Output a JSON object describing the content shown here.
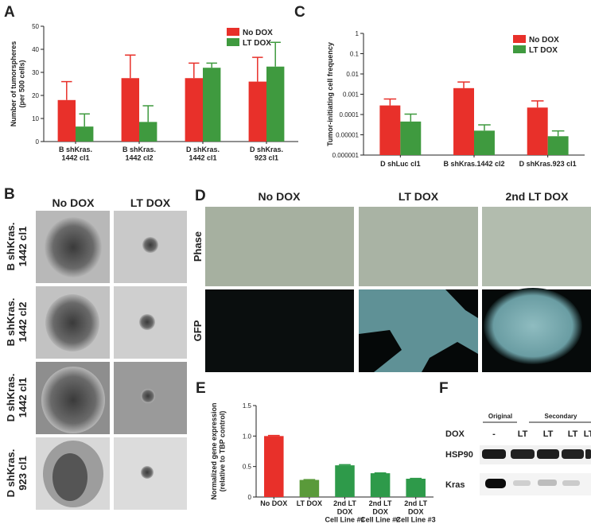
{
  "figure": {
    "panel_labels": [
      "A",
      "B",
      "C",
      "D",
      "E",
      "F"
    ]
  },
  "chart_data": [
    {
      "type": "bar",
      "y_label": "Number of tumorspheres\n(per 500 cells)",
      "categories": [
        "B shKras.\n1442 cl1",
        "B shKras.\n1442 cl2",
        "D shKras.\n1442 cl1",
        "D shKras.\n923 cl1"
      ],
      "series": [
        {
          "name": "No DOX",
          "color": "#e8302a",
          "values": [
            18,
            27.5,
            27.5,
            26
          ],
          "errors": [
            8,
            10,
            6.5,
            10.5
          ]
        },
        {
          "name": "LT DOX",
          "color": "#3f9a3f",
          "values": [
            6.5,
            8.5,
            32,
            32.5
          ],
          "errors": [
            5.5,
            7,
            2,
            10.5
          ]
        }
      ],
      "ylim": [
        0,
        50
      ],
      "yticks": [
        0,
        10,
        20,
        30,
        40,
        50
      ],
      "legend": "upper right"
    },
    {
      "type": "bar",
      "y_label": "Tumor-initiating cell frequency",
      "log_y": true,
      "categories": [
        "D shLuc cl1",
        "B shKras.1442 cl2",
        "D shKras.923 cl1"
      ],
      "series": [
        {
          "name": "No DOX",
          "color": "#e8302a",
          "values": [
            0.00028,
            0.002,
            0.00022
          ],
          "errors": [
            0.0003,
            0.002,
            0.00025
          ]
        },
        {
          "name": "LT DOX",
          "color": "#3f9a3f",
          "values": [
            4.5e-05,
            1.6e-05,
            8.5e-06
          ],
          "errors": [
            6e-05,
            1.5e-05,
            7e-06
          ]
        }
      ],
      "ylim": [
        1e-06,
        1
      ],
      "yticks": [
        1e-06,
        1e-05,
        0.0001,
        0.001,
        0.01,
        0.1,
        1
      ],
      "legend": "upper right"
    },
    {
      "type": "bar",
      "y_label": "Normalized gene expression\n(relative to TBP control)",
      "categories": [
        "No DOX",
        "LT DOX",
        "2nd LT\nDOX\nCell Line #1",
        "2nd LT\nDOX\nCell Line #2",
        "2nd LT\nDOX\nCell Line #3"
      ],
      "values": [
        1.0,
        0.28,
        0.52,
        0.39,
        0.3
      ],
      "errors": [
        0.01,
        0.005,
        0.01,
        0.005,
        0.005
      ],
      "colors": [
        "#e8302a",
        "#5a9a3a",
        "#2e9a4a",
        "#2e9a4a",
        "#2e9a4a"
      ],
      "ylim": [
        0,
        1.5
      ],
      "yticks": [
        0,
        0.5,
        {
          "value": 1,
          "label": "1.0"
        },
        1.5
      ]
    }
  ],
  "panel_b": {
    "columns": [
      "No DOX",
      "LT DOX"
    ],
    "rows": [
      "B shKras.\n1442 cl1",
      "B shKras.\n1442 cl2",
      "D shKras.\n1442 cl1",
      "D shKras.\n923 cl1"
    ]
  },
  "panel_d": {
    "columns": [
      "No DOX",
      "LT DOX",
      "2nd LT DOX"
    ],
    "rows": [
      "Phase",
      "GFP"
    ]
  },
  "panel_f": {
    "groups": [
      "Original",
      "Secondary"
    ],
    "row_label": "DOX",
    "lanes": [
      "-",
      "LT",
      "LT",
      "LT",
      "LT"
    ],
    "bands": [
      "HSP90",
      "Kras"
    ]
  }
}
